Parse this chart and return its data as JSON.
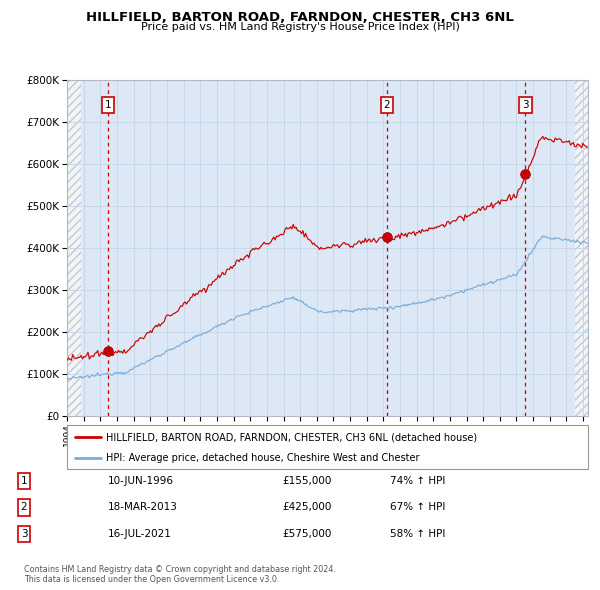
{
  "title1": "HILLFIELD, BARTON ROAD, FARNDON, CHESTER, CH3 6NL",
  "title2": "Price paid vs. HM Land Registry's House Price Index (HPI)",
  "legend_line1": "HILLFIELD, BARTON ROAD, FARNDON, CHESTER, CH3 6NL (detached house)",
  "legend_line2": "HPI: Average price, detached house, Cheshire West and Chester",
  "sale1_date": "10-JUN-1996",
  "sale1_price": 155000,
  "sale1_hpi": "74% ↑ HPI",
  "sale2_date": "18-MAR-2013",
  "sale2_price": 425000,
  "sale2_hpi": "67% ↑ HPI",
  "sale3_date": "16-JUL-2021",
  "sale3_price": 575000,
  "sale3_hpi": "58% ↑ HPI",
  "footer": "Contains HM Land Registry data © Crown copyright and database right 2024.\nThis data is licensed under the Open Government Licence v3.0.",
  "sale_color": "#cc0000",
  "hpi_color": "#7aadda",
  "plot_bg": "#dce8f5",
  "grid_color": "#c5d8ec",
  "vline_color": "#cc0000",
  "ylim": [
    0,
    800000
  ],
  "xlim_start": 1994.0,
  "xlim_end": 2025.3
}
